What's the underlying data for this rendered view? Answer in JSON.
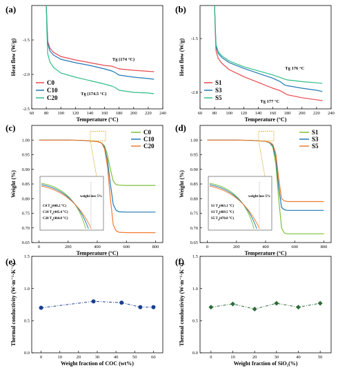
{
  "figure": {
    "panels": [
      "(a)",
      "(b)",
      "(c)",
      "(d)",
      "(e)",
      "(f)"
    ]
  },
  "chart_data": [
    {
      "id": "a",
      "type": "line",
      "xlabel": "Temperature (°C)",
      "ylabel": "Heat flow (W/g)",
      "xlim": [
        60,
        240
      ],
      "ylim": [
        -2.5,
        -1.0
      ],
      "xticks": [
        60,
        80,
        100,
        120,
        140,
        160,
        180,
        200,
        220,
        240
      ],
      "yticks": [
        -2.5,
        -2.0,
        -1.5
      ],
      "ytick_labels": [
        "-2.5",
        "-2.0",
        "-1.5"
      ],
      "legend": "lower-left",
      "series": [
        {
          "name": "C0",
          "color": "#e8474c",
          "x": [
            80,
            81,
            82,
            85,
            90,
            100,
            120,
            140,
            160,
            170,
            174,
            180,
            200,
            220,
            228
          ],
          "y": [
            -1.0,
            -1.3,
            -1.52,
            -1.62,
            -1.68,
            -1.74,
            -1.79,
            -1.83,
            -1.87,
            -1.88,
            -1.895,
            -1.92,
            -1.94,
            -1.955,
            -1.96
          ]
        },
        {
          "name": "C10",
          "color": "#1f77b4",
          "x": [
            80,
            81,
            82,
            85,
            90,
            100,
            120,
            140,
            160,
            170,
            174,
            180,
            200,
            220,
            228
          ],
          "y": [
            -1.0,
            -1.33,
            -1.55,
            -1.66,
            -1.72,
            -1.78,
            -1.83,
            -1.87,
            -1.92,
            -1.95,
            -1.97,
            -2.01,
            -2.04,
            -2.06,
            -2.07
          ]
        },
        {
          "name": "C20",
          "color": "#2ebd85",
          "x": [
            80,
            81,
            82,
            85,
            90,
            100,
            120,
            140,
            160,
            170,
            174.5,
            180,
            200,
            220,
            228
          ],
          "y": [
            -1.0,
            -1.45,
            -1.7,
            -1.82,
            -1.9,
            -1.98,
            -2.04,
            -2.09,
            -2.14,
            -2.17,
            -2.19,
            -2.23,
            -2.26,
            -2.27,
            -2.28
          ]
        }
      ],
      "annotations": [
        {
          "text": "Tg  (174 °C)",
          "x": 186,
          "y": -1.8
        },
        {
          "text": "Tg  (174.5 °C)",
          "x": 145,
          "y": -2.3
        }
      ]
    },
    {
      "id": "b",
      "type": "line",
      "xlabel": "Temperature (°C)",
      "ylabel": "Heat flow (W/g)",
      "xlim": [
        60,
        240
      ],
      "ylim": [
        -3.2,
        -0.7
      ],
      "xticks": [
        60,
        80,
        100,
        120,
        140,
        160,
        180,
        200,
        220,
        240
      ],
      "yticks": [
        -2.8,
        -1.5
      ],
      "ytick_labels": [
        "-2.8",
        "-1.5"
      ],
      "legend": "lower-left",
      "series": [
        {
          "name": "S1",
          "color": "#e8474c",
          "x": [
            80,
            81,
            82,
            85,
            90,
            100,
            120,
            140,
            160,
            170,
            177,
            180,
            200,
            220,
            228
          ],
          "y": [
            -0.7,
            -1.4,
            -1.8,
            -1.98,
            -2.1,
            -2.25,
            -2.42,
            -2.56,
            -2.7,
            -2.76,
            -2.83,
            -2.86,
            -2.93,
            -2.98,
            -3.0
          ]
        },
        {
          "name": "S3",
          "color": "#1f77b4",
          "x": [
            80,
            81,
            82,
            85,
            90,
            100,
            120,
            140,
            160,
            170,
            176,
            180,
            200,
            220,
            228
          ],
          "y": [
            -0.7,
            -1.3,
            -1.7,
            -1.86,
            -1.96,
            -2.08,
            -2.22,
            -2.34,
            -2.46,
            -2.54,
            -2.62,
            -2.64,
            -2.7,
            -2.75,
            -2.78
          ]
        },
        {
          "name": "S5",
          "color": "#2ebd85",
          "x": [
            80,
            81,
            82,
            85,
            90,
            100,
            120,
            140,
            160,
            170,
            176,
            180,
            200,
            220,
            228
          ],
          "y": [
            -0.7,
            -1.25,
            -1.65,
            -1.82,
            -1.92,
            -2.04,
            -2.18,
            -2.28,
            -2.38,
            -2.44,
            -2.48,
            -2.5,
            -2.54,
            -2.57,
            -2.58
          ]
        }
      ],
      "annotations": [
        {
          "text": "Tg  176 °C",
          "x": 190,
          "y": -2.25
        },
        {
          "text": "Tg  177 °C",
          "x": 156,
          "y": -3.05
        }
      ]
    },
    {
      "id": "c",
      "type": "line",
      "xlabel": "Temperature (°C)",
      "ylabel": "Weight (%)",
      "xlim": [
        -50,
        850
      ],
      "ylim": [
        0.65,
        1.05
      ],
      "xticks": [
        0,
        200,
        400,
        600,
        800
      ],
      "yticks": [
        0.65,
        0.7,
        0.75,
        0.8,
        0.85,
        0.9,
        0.95,
        1.0
      ],
      "ytick_labels": [
        "0.65",
        "0.70",
        "0.75",
        "0.80",
        "0.85",
        "0.90",
        "0.95",
        "1.00"
      ],
      "legend": "top-right",
      "series": [
        {
          "name": "C0",
          "color": "#7cbf3a",
          "x": [
            0,
            100,
            200,
            300,
            400,
            430,
            450,
            470,
            490,
            510,
            530,
            550,
            600,
            700,
            800
          ],
          "y": [
            1.0,
            1.0,
            1.0,
            0.999,
            0.995,
            0.99,
            0.98,
            0.95,
            0.9,
            0.86,
            0.848,
            0.846,
            0.845,
            0.845,
            0.845
          ]
        },
        {
          "name": "C10",
          "color": "#1f77b4",
          "x": [
            0,
            100,
            200,
            300,
            400,
            430,
            450,
            470,
            490,
            510,
            530,
            550,
            600,
            700,
            800
          ],
          "y": [
            1.0,
            1.0,
            1.0,
            0.999,
            0.995,
            0.99,
            0.975,
            0.93,
            0.85,
            0.78,
            0.76,
            0.755,
            0.754,
            0.754,
            0.754
          ]
        },
        {
          "name": "C20",
          "color": "#f07a30",
          "x": [
            0,
            100,
            200,
            300,
            400,
            430,
            450,
            470,
            490,
            510,
            530,
            550,
            600,
            700,
            800
          ],
          "y": [
            1.0,
            1.0,
            1.0,
            0.999,
            0.995,
            0.99,
            0.97,
            0.91,
            0.8,
            0.71,
            0.69,
            0.685,
            0.684,
            0.684,
            0.684
          ]
        }
      ],
      "inset": {
        "lines": [
          "C0  T",
          "(448.2 °C)",
          "C10  T",
          "(445.4 °C)",
          "C20  T",
          "(464.8 °C)"
        ],
        "entries": [
          {
            "label": "C0",
            "sub": "d",
            "value": "(448.2 °C)"
          },
          {
            "label": "C10",
            "sub": "d",
            "value": "(445.4 °C)"
          },
          {
            "label": "C20",
            "sub": "d",
            "value": "(464.8 °C)"
          }
        ],
        "note": "weight loss 5%"
      }
    },
    {
      "id": "d",
      "type": "line",
      "xlabel": "Temperature (°C)",
      "ylabel": "Weight (%)",
      "xlim": [
        -50,
        850
      ],
      "ylim": [
        0.65,
        1.05
      ],
      "xticks": [
        0,
        200,
        400,
        600,
        800
      ],
      "yticks": [
        0.65,
        0.7,
        0.75,
        0.8,
        0.85,
        0.9,
        0.95,
        1.0
      ],
      "ytick_labels": [
        "0.65",
        "0.70",
        "0.75",
        "0.80",
        "0.85",
        "0.90",
        "0.95",
        "1.00"
      ],
      "legend": "top-right",
      "series": [
        {
          "name": "S1",
          "color": "#7cbf3a",
          "x": [
            0,
            100,
            200,
            300,
            400,
            430,
            450,
            470,
            490,
            510,
            530,
            550,
            600,
            700,
            800
          ],
          "y": [
            1.0,
            1.0,
            1.0,
            0.999,
            0.996,
            0.99,
            0.975,
            0.92,
            0.8,
            0.7,
            0.682,
            0.68,
            0.68,
            0.68,
            0.68
          ]
        },
        {
          "name": "S3",
          "color": "#1f77b4",
          "x": [
            0,
            100,
            200,
            300,
            400,
            430,
            450,
            470,
            490,
            510,
            530,
            550,
            600,
            700,
            800
          ],
          "y": [
            1.0,
            1.0,
            1.0,
            0.999,
            0.996,
            0.99,
            0.98,
            0.94,
            0.84,
            0.77,
            0.762,
            0.76,
            0.76,
            0.76,
            0.76
          ]
        },
        {
          "name": "S5",
          "color": "#f07a30",
          "x": [
            0,
            100,
            200,
            300,
            400,
            430,
            450,
            470,
            490,
            510,
            530,
            550,
            600,
            700,
            800
          ],
          "y": [
            1.0,
            1.0,
            1.0,
            0.999,
            0.996,
            0.992,
            0.985,
            0.955,
            0.87,
            0.8,
            0.792,
            0.79,
            0.79,
            0.79,
            0.79
          ]
        }
      ],
      "inset": {
        "entries": [
          {
            "label": "S1",
            "sub": "d",
            "value": "(463.1 °C)"
          },
          {
            "label": "S3",
            "sub": "d",
            "value": "(469.5 °C)"
          },
          {
            "label": "S5",
            "sub": "d",
            "value": "(470.8 °C)"
          }
        ],
        "note": "weight loss 5%"
      }
    },
    {
      "id": "e",
      "type": "line",
      "xlabel": "Weight fraction of COC (wt%)",
      "ylabel": "Thermal conductivity (W·m⁻¹·K⁻¹)",
      "xlim": [
        -5,
        65
      ],
      "ylim": [
        0.0,
        1.5
      ],
      "xticks": [
        0,
        10,
        20,
        30,
        40,
        50,
        60
      ],
      "yticks": [
        0.0,
        0.5,
        1.0,
        1.5
      ],
      "ytick_labels": [
        "0.0",
        "0.5",
        "1.0",
        "1.5"
      ],
      "legend": "none",
      "series": [
        {
          "color": "#1b3f8f",
          "marker": "circle",
          "x": [
            0,
            28,
            43,
            53,
            60
          ],
          "y": [
            0.7,
            0.8,
            0.78,
            0.71,
            0.71
          ]
        }
      ]
    },
    {
      "id": "f",
      "type": "line",
      "xlabel": "Weight fraction of SiO₂(%)",
      "ylabel": "Thermal conductivity (W·m⁻¹·K⁻¹)",
      "xlim": [
        -5,
        55
      ],
      "ylim": [
        0.0,
        1.5
      ],
      "xticks": [
        0,
        10,
        20,
        30,
        40,
        50
      ],
      "yticks": [
        0.0,
        0.5,
        1.0,
        1.5
      ],
      "ytick_labels": [
        "0.0",
        "0.5",
        "1.0",
        "1.5"
      ],
      "legend": "none",
      "series": [
        {
          "color": "#2e6b3a",
          "marker": "diamond",
          "x": [
            0,
            10,
            20,
            30,
            40,
            50
          ],
          "y": [
            0.71,
            0.76,
            0.68,
            0.77,
            0.71,
            0.77
          ]
        }
      ]
    }
  ]
}
